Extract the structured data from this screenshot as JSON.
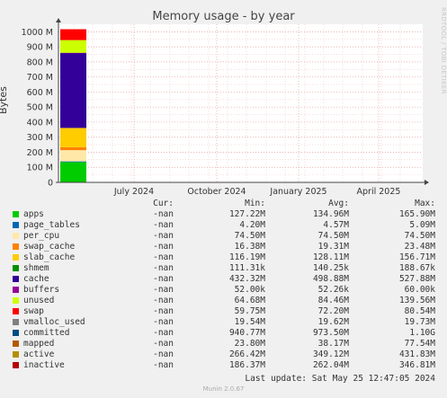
{
  "chart_data": {
    "type": "area",
    "title": "Memory usage - by year",
    "ylabel": "Bytes",
    "side_label": "RRDTOOL / TOBI OETIKER",
    "ylim": [
      0,
      1050000000
    ],
    "yticks": [
      {
        "value": 0,
        "label": "0"
      },
      {
        "value": 100000000,
        "label": "100 M"
      },
      {
        "value": 200000000,
        "label": "200 M"
      },
      {
        "value": 300000000,
        "label": "300 M"
      },
      {
        "value": 400000000,
        "label": "400 M"
      },
      {
        "value": 500000000,
        "label": "500 M"
      },
      {
        "value": 600000000,
        "label": "600 M"
      },
      {
        "value": 700000000,
        "label": "700 M"
      },
      {
        "value": 800000000,
        "label": "800 M"
      },
      {
        "value": 900000000,
        "label": "900 M"
      },
      {
        "value": 1000000000,
        "label": "1000 M"
      }
    ],
    "xticks": [
      "July 2024",
      "October 2024",
      "January 2025",
      "April 2025"
    ],
    "grid": true,
    "stacked_series_at_data_period": [
      {
        "name": "apps",
        "color": "#00cc00",
        "value": 134960000
      },
      {
        "name": "page_tables",
        "color": "#0066b3",
        "value": 4570000
      },
      {
        "name": "per_cpu",
        "color": "#ffe8a8",
        "value": 74500000
      },
      {
        "name": "swap_cache",
        "color": "#ff8000",
        "value": 19310000
      },
      {
        "name": "slab_cache",
        "color": "#ffcc00",
        "value": 128110000
      },
      {
        "name": "cache",
        "color": "#330099",
        "value": 498880000
      },
      {
        "name": "buffers",
        "color": "#990099",
        "value": 52260
      },
      {
        "name": "unused",
        "color": "#ccff00",
        "value": 84460000
      },
      {
        "name": "swap",
        "color": "#ff0000",
        "value": 72200000
      }
    ]
  },
  "legend": {
    "headers": {
      "cur": "Cur:",
      "min": "Min:",
      "avg": "Avg:",
      "max": "Max:"
    },
    "rows": [
      {
        "name": "apps",
        "color": "#00cc00",
        "cur": "-nan",
        "min": "127.22M",
        "avg": "134.96M",
        "max": "165.90M"
      },
      {
        "name": "page_tables",
        "color": "#0066b3",
        "cur": "-nan",
        "min": "4.20M",
        "avg": "4.57M",
        "max": "5.09M"
      },
      {
        "name": "per_cpu",
        "color": "#ffe8a8",
        "cur": "-nan",
        "min": "74.50M",
        "avg": "74.50M",
        "max": "74.50M"
      },
      {
        "name": "swap_cache",
        "color": "#ff8000",
        "cur": "-nan",
        "min": "16.38M",
        "avg": "19.31M",
        "max": "23.48M"
      },
      {
        "name": "slab_cache",
        "color": "#ffcc00",
        "cur": "-nan",
        "min": "116.19M",
        "avg": "128.11M",
        "max": "156.71M"
      },
      {
        "name": "shmem",
        "color": "#008f00",
        "cur": "-nan",
        "min": "111.31k",
        "avg": "140.25k",
        "max": "188.67k"
      },
      {
        "name": "cache",
        "color": "#330099",
        "cur": "-nan",
        "min": "432.32M",
        "avg": "498.88M",
        "max": "527.88M"
      },
      {
        "name": "buffers",
        "color": "#990099",
        "cur": "-nan",
        "min": "52.00k",
        "avg": "52.26k",
        "max": "60.00k"
      },
      {
        "name": "unused",
        "color": "#ccff00",
        "cur": "-nan",
        "min": "64.68M",
        "avg": "84.46M",
        "max": "139.56M"
      },
      {
        "name": "swap",
        "color": "#ff0000",
        "cur": "-nan",
        "min": "59.75M",
        "avg": "72.20M",
        "max": "80.54M"
      },
      {
        "name": "vmalloc_used",
        "color": "#808080",
        "cur": "-nan",
        "min": "19.54M",
        "avg": "19.62M",
        "max": "19.73M"
      },
      {
        "name": "committed",
        "color": "#004d80",
        "cur": "-nan",
        "min": "940.77M",
        "avg": "973.50M",
        "max": "1.10G"
      },
      {
        "name": "mapped",
        "color": "#b35a00",
        "cur": "-nan",
        "min": "23.80M",
        "avg": "38.17M",
        "max": "77.54M"
      },
      {
        "name": "active",
        "color": "#b38f00",
        "cur": "-nan",
        "min": "266.42M",
        "avg": "349.12M",
        "max": "431.83M"
      },
      {
        "name": "inactive",
        "color": "#b30000",
        "cur": "-nan",
        "min": "186.37M",
        "avg": "262.04M",
        "max": "346.81M"
      }
    ]
  },
  "footer": "Last update: Sat May 25 12:47:05 2024",
  "munin_version": "Munin 2.0.67"
}
